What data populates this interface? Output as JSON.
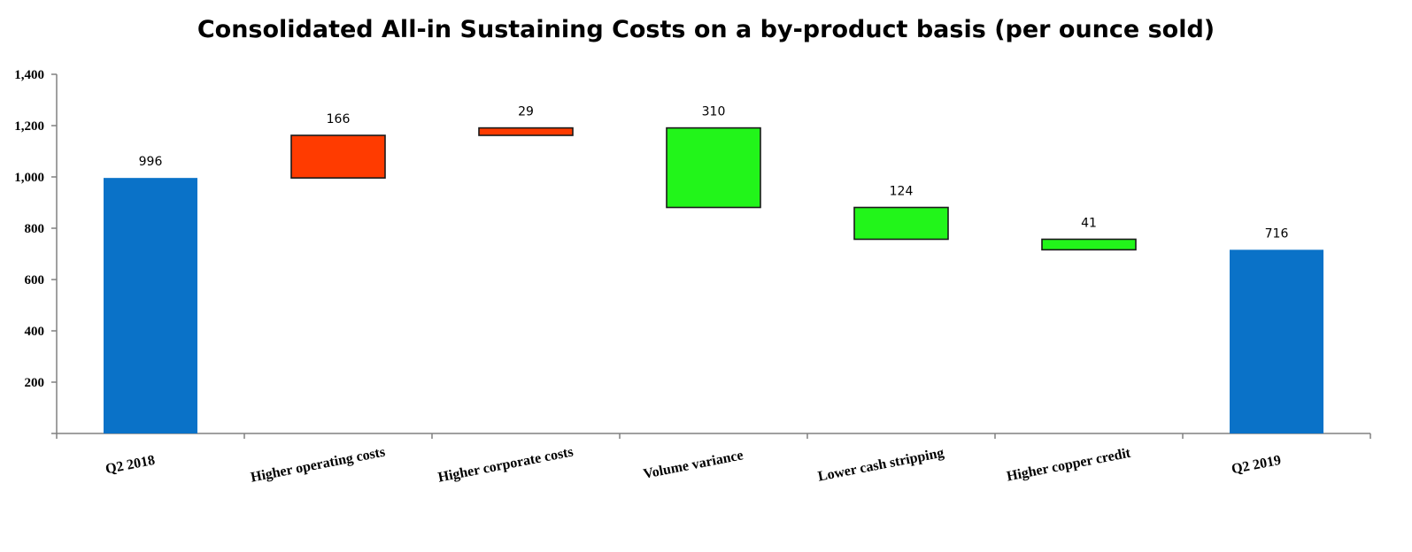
{
  "chart_data": {
    "type": "waterfall",
    "title": "Consolidated All-in Sustaining Costs on a by-product basis (per ounce sold)",
    "xlabel": "",
    "ylabel": "",
    "ylim": [
      0,
      1400
    ],
    "yticks": [
      200,
      400,
      600,
      800,
      1000,
      1200,
      1400
    ],
    "ytick_labels": [
      "200",
      "400",
      "600",
      "800",
      "1,000",
      "1,200",
      "1,400"
    ],
    "grid": false,
    "legend": "none",
    "categories": [
      "Q2 2018",
      "Higher operating costs",
      "Higher corporate costs",
      "Volume variance",
      "Lower cash stripping",
      "Higher copper credit",
      "Q2 2019"
    ],
    "bars": [
      {
        "category": "Q2 2018",
        "kind": "total",
        "value": 996,
        "label": "996"
      },
      {
        "category": "Higher operating costs",
        "kind": "increase",
        "value": 166,
        "label": "166"
      },
      {
        "category": "Higher corporate costs",
        "kind": "increase",
        "value": 29,
        "label": "29"
      },
      {
        "category": "Volume variance",
        "kind": "decrease",
        "value": 310,
        "label": "310"
      },
      {
        "category": "Lower cash stripping",
        "kind": "decrease",
        "value": 124,
        "label": "124"
      },
      {
        "category": "Higher copper credit",
        "kind": "decrease",
        "value": 41,
        "label": "41"
      },
      {
        "category": "Q2 2019",
        "kind": "total",
        "value": 716,
        "label": "716"
      }
    ],
    "colors": {
      "total": "#0a72c8",
      "increase": "#ff3b00",
      "decrease": "#22f51a",
      "border": "#1a1a1a",
      "axis": "#808080"
    }
  }
}
